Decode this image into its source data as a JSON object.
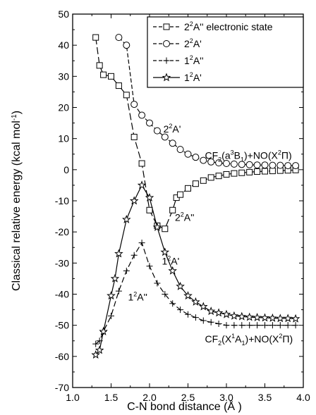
{
  "chart_data": {
    "type": "line",
    "xlabel": "C-N bond distance (Å )",
    "ylabel_main": "Classical relative energy (kcal mol",
    "ylabel_sup": "-1",
    "ylabel_close": ")",
    "xlim": [
      1.0,
      4.0
    ],
    "ylim": [
      -70,
      50
    ],
    "xticks": [
      "1.0",
      "1.5",
      "2.0",
      "2.5",
      "3.0",
      "3.5",
      "4.0"
    ],
    "yticks": [
      "50",
      "40",
      "30",
      "20",
      "10",
      "0",
      "-10",
      "-20",
      "-30",
      "-40",
      "-50",
      "-60",
      "-70"
    ],
    "legend_position": "top-right",
    "series": [
      {
        "name": "2²A'' electronic state",
        "marker": "square",
        "dash": "10,4",
        "x": [
          1.3,
          1.35,
          1.4,
          1.5,
          1.6,
          1.7,
          1.8,
          1.9,
          2.0,
          2.1,
          2.2,
          2.3,
          2.35,
          2.4,
          2.5,
          2.6,
          2.7,
          2.8,
          2.9,
          3.0,
          3.1,
          3.2,
          3.3,
          3.4,
          3.5,
          3.6,
          3.7,
          3.8,
          3.9
        ],
        "y": [
          42.5,
          33.5,
          30.5,
          30.0,
          27.0,
          24.0,
          10.5,
          2.0,
          -13.0,
          -18.0,
          -19.0,
          -13.0,
          -9.0,
          -8.0,
          -6.0,
          -4.5,
          -3.5,
          -2.5,
          -2.0,
          -1.5,
          -1.2,
          -1.0,
          -0.8,
          -0.6,
          -0.5,
          -0.4,
          -0.3,
          -0.2,
          -0.1
        ]
      },
      {
        "name": "2²A'",
        "marker": "circle",
        "dash": "6,3",
        "x": [
          1.6,
          1.7,
          1.8,
          1.9,
          2.0,
          2.1,
          2.2,
          2.3,
          2.4,
          2.5,
          2.6,
          2.7,
          2.8,
          2.9,
          3.0,
          3.1,
          3.2,
          3.3,
          3.4,
          3.5,
          3.6,
          3.7,
          3.8,
          3.9
        ],
        "y": [
          42.5,
          40.0,
          21.0,
          17.5,
          15.0,
          12.5,
          10.5,
          8.5,
          6.5,
          5.0,
          4.0,
          3.0,
          2.5,
          2.2,
          2.0,
          1.8,
          1.7,
          1.6,
          1.5,
          1.5,
          1.4,
          1.4,
          1.3,
          1.3
        ]
      },
      {
        "name": "1²A''",
        "marker": "plus",
        "dash": "8,4",
        "x": [
          1.3,
          1.35,
          1.4,
          1.5,
          1.6,
          1.7,
          1.8,
          1.9,
          2.0,
          2.1,
          2.2,
          2.3,
          2.4,
          2.5,
          2.6,
          2.7,
          2.8,
          2.9,
          3.0,
          3.1,
          3.2,
          3.3,
          3.4,
          3.5,
          3.6,
          3.7,
          3.8,
          3.9
        ],
        "y": [
          -56.0,
          -55.0,
          -52.0,
          -47.0,
          -39.0,
          -32.5,
          -27.5,
          -23.5,
          -31.0,
          -36.5,
          -40.0,
          -43.0,
          -45.0,
          -46.5,
          -47.5,
          -48.5,
          -49.0,
          -49.5,
          -50.0,
          -50.0,
          -50.0,
          -50.0,
          -50.0,
          -50.0,
          -50.0,
          -50.0,
          -50.0,
          -50.0
        ]
      },
      {
        "name": "1²A'",
        "marker": "star",
        "dash": "none",
        "x": [
          1.3,
          1.35,
          1.4,
          1.5,
          1.55,
          1.6,
          1.7,
          1.8,
          1.9,
          2.0,
          2.1,
          2.2,
          2.3,
          2.4,
          2.5,
          2.6,
          2.7,
          2.8,
          2.9,
          3.0,
          3.1,
          3.2,
          3.3,
          3.4,
          3.5,
          3.6,
          3.7,
          3.8,
          3.9
        ],
        "y": [
          -59.5,
          -58.0,
          -52.0,
          -40.5,
          -35.0,
          -27.0,
          -16.0,
          -10.0,
          -5.0,
          -9.0,
          -18.5,
          -26.5,
          -32.5,
          -37.5,
          -40.5,
          -42.5,
          -44.0,
          -45.5,
          -46.0,
          -46.5,
          -47.0,
          -47.2,
          -47.4,
          -47.5,
          -47.6,
          -47.7,
          -47.8,
          -47.8,
          -47.9
        ]
      }
    ],
    "legend": [
      {
        "pre": "2",
        "sup": "2",
        "post": "A'' electronic state"
      },
      {
        "pre": "2",
        "sup": "2",
        "post": "A'"
      },
      {
        "pre": "1",
        "sup": "2",
        "post": "A''"
      },
      {
        "pre": "1",
        "sup": "2",
        "post": "A'"
      }
    ],
    "annotations": [
      {
        "text_pre": "2",
        "sup": "2",
        "text_post": "A'",
        "at_x": 2.18,
        "at_y": 12.0
      },
      {
        "text_pre": "2",
        "sup": "2",
        "text_post": "A''",
        "at_x": 2.33,
        "at_y": -16.5
      },
      {
        "text_pre": "1",
        "sup": "2",
        "text_post": "A'",
        "at_x": 2.16,
        "at_y": -30.5
      },
      {
        "text_pre": "1",
        "sup": "2",
        "text_post": "A''",
        "at_x": 1.72,
        "at_y": -42.0
      }
    ],
    "asymptote_upper": {
      "parts": [
        "CF",
        "2",
        "(a",
        "3",
        "B",
        "1",
        ")+NO(X",
        "2",
        "Π)"
      ],
      "at_x": 2.72,
      "at_y": 3.5
    },
    "asymptote_lower": {
      "parts": [
        "CF",
        "2",
        "(X",
        "1",
        "A",
        "1",
        ")+NO(X",
        "2",
        "Π)"
      ],
      "at_x": 2.72,
      "at_y": -55.5
    }
  }
}
